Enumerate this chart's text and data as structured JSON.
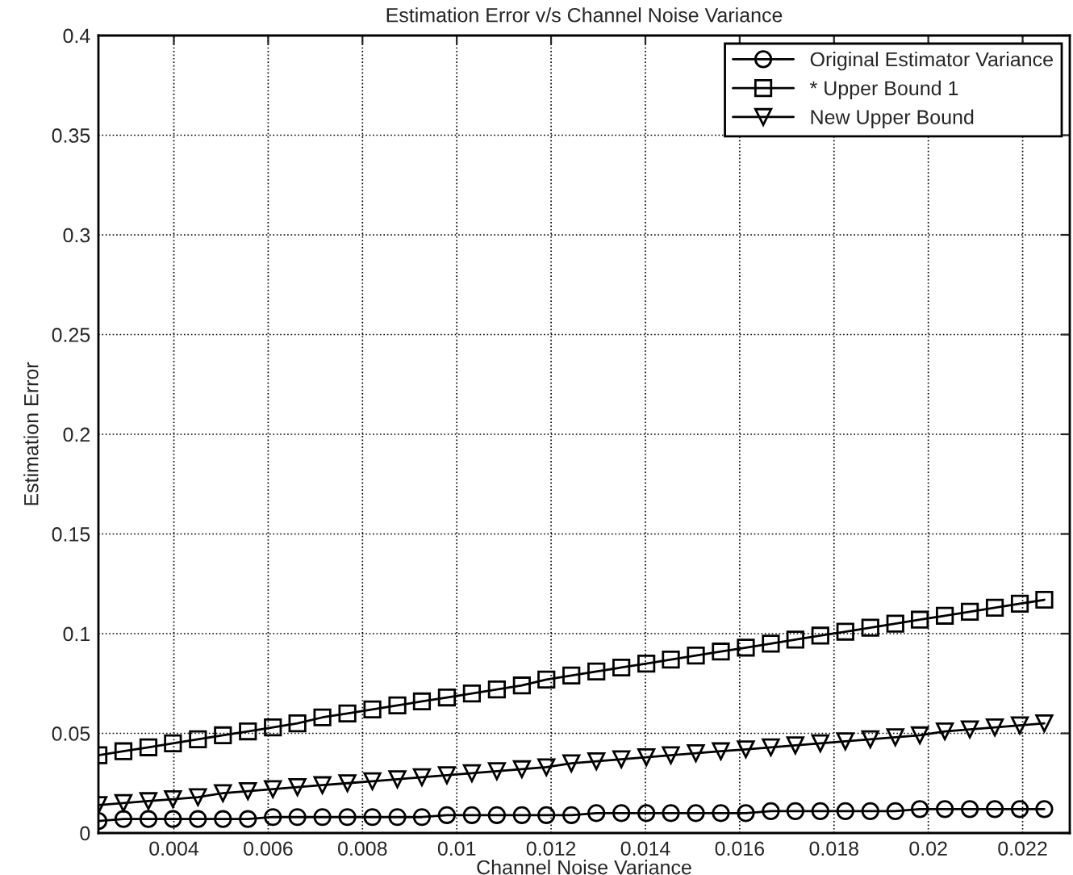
{
  "chart_data": {
    "type": "line",
    "title": "Estimation Error v/s Channel Noise Variance",
    "xlabel": "Channel Noise Variance",
    "ylabel": "Estimation Error",
    "x": [
      0.0024,
      0.00293,
      0.00346,
      0.00398,
      0.00451,
      0.00504,
      0.00557,
      0.0061,
      0.00662,
      0.00715,
      0.00768,
      0.00821,
      0.00874,
      0.00926,
      0.00979,
      0.01032,
      0.01085,
      0.01138,
      0.0119,
      0.01243,
      0.01296,
      0.01349,
      0.01402,
      0.01454,
      0.01507,
      0.0156,
      0.01613,
      0.01666,
      0.01718,
      0.01771,
      0.01824,
      0.01877,
      0.0193,
      0.01982,
      0.02035,
      0.02088,
      0.02141,
      0.02194,
      0.02246
    ],
    "series": [
      {
        "name": "Original Estimator Variance",
        "color": "#000000",
        "marker": "circle",
        "values": [
          0.006,
          0.007,
          0.007,
          0.007,
          0.007,
          0.007,
          0.007,
          0.008,
          0.008,
          0.008,
          0.008,
          0.008,
          0.008,
          0.008,
          0.009,
          0.009,
          0.009,
          0.009,
          0.009,
          0.009,
          0.01,
          0.01,
          0.01,
          0.01,
          0.01,
          0.01,
          0.01,
          0.011,
          0.011,
          0.011,
          0.011,
          0.011,
          0.011,
          0.012,
          0.012,
          0.012,
          0.012,
          0.012,
          0.012
        ]
      },
      {
        "name": "* Upper Bound 1",
        "color": "#000000",
        "marker": "square",
        "values": [
          0.039,
          0.041,
          0.043,
          0.045,
          0.047,
          0.049,
          0.051,
          0.053,
          0.055,
          0.058,
          0.06,
          0.062,
          0.064,
          0.066,
          0.068,
          0.07,
          0.072,
          0.074,
          0.077,
          0.079,
          0.081,
          0.083,
          0.085,
          0.087,
          0.089,
          0.091,
          0.093,
          0.095,
          0.097,
          0.099,
          0.101,
          0.103,
          0.105,
          0.107,
          0.109,
          0.111,
          0.113,
          0.115,
          0.117
        ]
      },
      {
        "name": "New Upper Bound",
        "color": "#000000",
        "marker": "triangle",
        "values": [
          0.014,
          0.015,
          0.016,
          0.017,
          0.018,
          0.02,
          0.021,
          0.022,
          0.023,
          0.024,
          0.025,
          0.026,
          0.027,
          0.028,
          0.029,
          0.03,
          0.031,
          0.032,
          0.033,
          0.035,
          0.036,
          0.037,
          0.038,
          0.039,
          0.04,
          0.041,
          0.042,
          0.043,
          0.044,
          0.045,
          0.046,
          0.047,
          0.048,
          0.049,
          0.051,
          0.052,
          0.053,
          0.054,
          0.055
        ]
      }
    ],
    "xlim": [
      0.0024,
      0.023
    ],
    "xticks": [
      0.004,
      0.006,
      0.008,
      0.01,
      0.012,
      0.014,
      0.016,
      0.018,
      0.02,
      0.022
    ],
    "ylim": [
      0,
      0.4
    ],
    "yticks": [
      0,
      0.05,
      0.1,
      0.15,
      0.2,
      0.25,
      0.3,
      0.35,
      0.4
    ],
    "grid": true,
    "legend": "top right",
    "line_style": "solid"
  }
}
